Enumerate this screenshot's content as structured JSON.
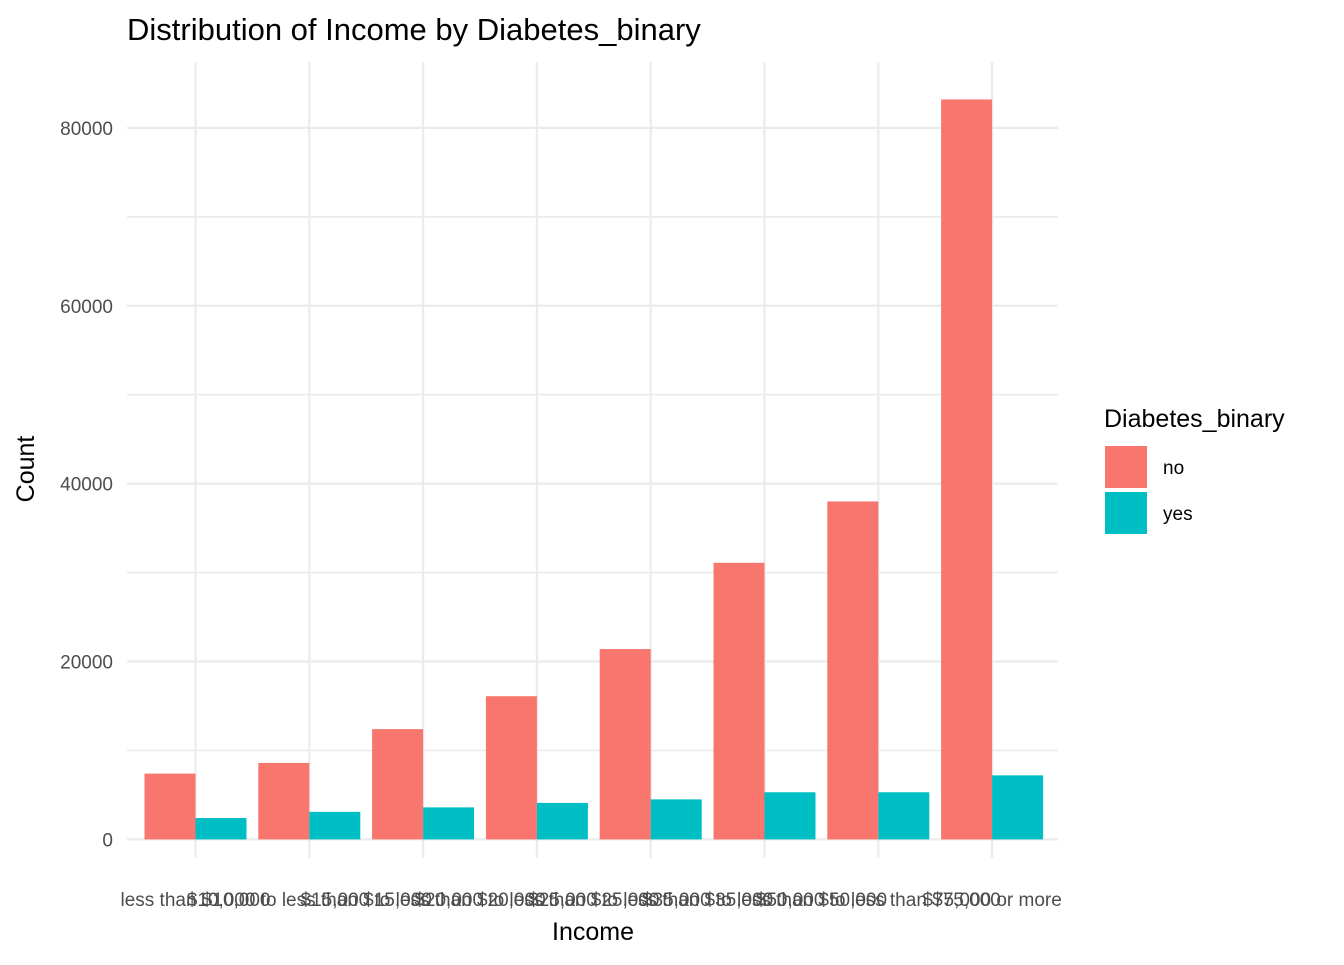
{
  "chart_data": {
    "type": "bar",
    "title": "Distribution of Income by Diabetes_binary",
    "xlabel": "Income",
    "ylabel": "Count",
    "categories": [
      "less than $10,000",
      "$10,000 to less than $15,000",
      "$15,000 to less than $20,000",
      "$20,000 to less than $25,000",
      "$25,000 to less than $35,000",
      "$35,000 to less than $50,000",
      "$50,000 to less than $75,000",
      "$75,000 or more"
    ],
    "series": [
      {
        "name": "no",
        "color": "#F8766D",
        "values": [
          7400,
          8600,
          12400,
          16100,
          21400,
          31100,
          38000,
          83200
        ]
      },
      {
        "name": "yes",
        "color": "#00BFC4",
        "values": [
          2400,
          3100,
          3600,
          4100,
          4500,
          5300,
          5300,
          7200
        ]
      }
    ],
    "ylim": [
      0,
      86500
    ],
    "yticks": [
      0,
      20000,
      40000,
      60000,
      80000
    ],
    "ytick_labels": [
      "0",
      "20000",
      "40000",
      "60000",
      "80000"
    ],
    "grid": true,
    "legend": {
      "title": "Diabetes_binary",
      "position": "right"
    }
  }
}
